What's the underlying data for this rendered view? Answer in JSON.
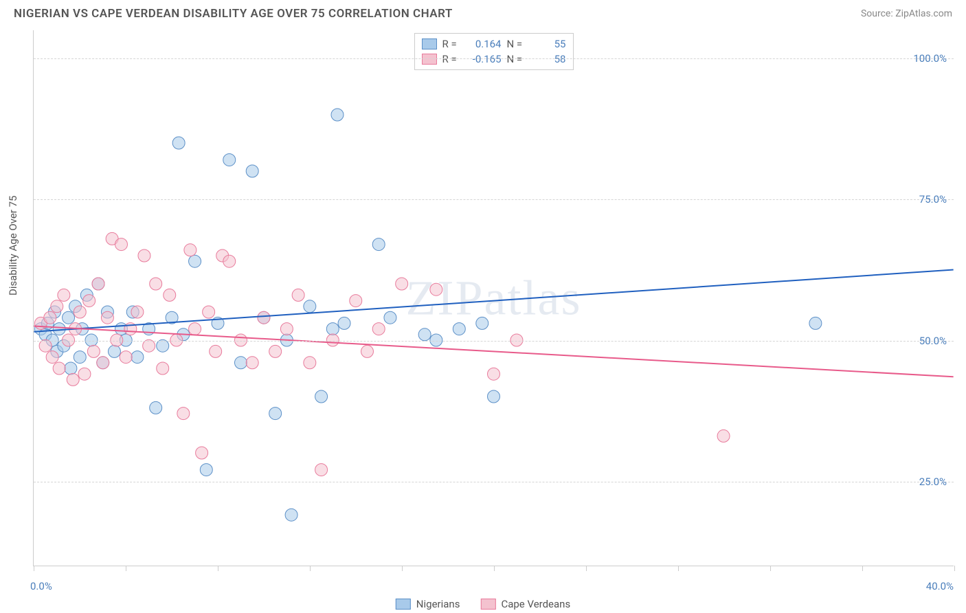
{
  "header": {
    "title": "NIGERIAN VS CAPE VERDEAN DISABILITY AGE OVER 75 CORRELATION CHART",
    "source": "Source: ZipAtlas.com"
  },
  "chart": {
    "type": "scatter",
    "ylabel": "Disability Age Over 75",
    "xlim": [
      0,
      40
    ],
    "ylim": [
      10,
      105
    ],
    "yticks": [
      25,
      50,
      75,
      100
    ],
    "ytick_labels": [
      "25.0%",
      "50.0%",
      "75.0%",
      "100.0%"
    ],
    "xticks": [
      0,
      4,
      8,
      12,
      16,
      20,
      24,
      28,
      32,
      36,
      40
    ],
    "xtick_labels_shown": {
      "0": "0.0%",
      "40": "40.0%"
    },
    "background_color": "#ffffff",
    "grid_color": "#d5d5d5",
    "axis_color": "#cccccc",
    "tick_label_color": "#4a7ebb",
    "label_color": "#555555",
    "marker_radius": 9,
    "marker_opacity": 0.55,
    "series": [
      {
        "name": "Nigerians",
        "color_fill": "#a8caea",
        "color_stroke": "#5b8fc7",
        "r_value": "0.164",
        "n_value": "55",
        "trend": {
          "x1": 0,
          "y1": 51.5,
          "x2": 40,
          "y2": 62.5,
          "color": "#1f5fbf",
          "width": 2
        },
        "points": [
          [
            0.3,
            52
          ],
          [
            0.5,
            51
          ],
          [
            0.6,
            53
          ],
          [
            0.8,
            50
          ],
          [
            0.9,
            55
          ],
          [
            1.0,
            48
          ],
          [
            1.1,
            52
          ],
          [
            1.3,
            49
          ],
          [
            1.5,
            54
          ],
          [
            1.6,
            45
          ],
          [
            1.8,
            56
          ],
          [
            2.0,
            47
          ],
          [
            2.1,
            52
          ],
          [
            2.3,
            58
          ],
          [
            2.5,
            50
          ],
          [
            2.8,
            60
          ],
          [
            3.0,
            46
          ],
          [
            3.2,
            55
          ],
          [
            3.5,
            48
          ],
          [
            3.8,
            52
          ],
          [
            4.0,
            50
          ],
          [
            4.3,
            55
          ],
          [
            4.5,
            47
          ],
          [
            5.0,
            52
          ],
          [
            5.3,
            38
          ],
          [
            5.6,
            49
          ],
          [
            6.0,
            54
          ],
          [
            6.3,
            85
          ],
          [
            6.5,
            51
          ],
          [
            7.0,
            64
          ],
          [
            7.5,
            27
          ],
          [
            8.0,
            53
          ],
          [
            8.5,
            82
          ],
          [
            9.0,
            46
          ],
          [
            9.5,
            80
          ],
          [
            10.0,
            54
          ],
          [
            10.5,
            37
          ],
          [
            11.0,
            50
          ],
          [
            11.2,
            19
          ],
          [
            12.0,
            56
          ],
          [
            12.5,
            40
          ],
          [
            13.0,
            52
          ],
          [
            13.2,
            90
          ],
          [
            13.5,
            53
          ],
          [
            15.0,
            67
          ],
          [
            15.5,
            54
          ],
          [
            17.0,
            51
          ],
          [
            17.5,
            50
          ],
          [
            18.5,
            52
          ],
          [
            19.5,
            53
          ],
          [
            20.0,
            40
          ],
          [
            34.0,
            53
          ]
        ]
      },
      {
        "name": "Cape Verdeans",
        "color_fill": "#f4c2cf",
        "color_stroke": "#e87a9b",
        "r_value": "-0.165",
        "n_value": "58",
        "trend": {
          "x1": 0,
          "y1": 52.5,
          "x2": 40,
          "y2": 43.5,
          "color": "#e85a8a",
          "width": 2
        },
        "points": [
          [
            0.3,
            53
          ],
          [
            0.5,
            49
          ],
          [
            0.7,
            54
          ],
          [
            0.8,
            47
          ],
          [
            1.0,
            56
          ],
          [
            1.1,
            45
          ],
          [
            1.3,
            58
          ],
          [
            1.5,
            50
          ],
          [
            1.7,
            43
          ],
          [
            1.8,
            52
          ],
          [
            2.0,
            55
          ],
          [
            2.2,
            44
          ],
          [
            2.4,
            57
          ],
          [
            2.6,
            48
          ],
          [
            2.8,
            60
          ],
          [
            3.0,
            46
          ],
          [
            3.2,
            54
          ],
          [
            3.4,
            68
          ],
          [
            3.6,
            50
          ],
          [
            3.8,
            67
          ],
          [
            4.0,
            47
          ],
          [
            4.2,
            52
          ],
          [
            4.5,
            55
          ],
          [
            4.8,
            65
          ],
          [
            5.0,
            49
          ],
          [
            5.3,
            60
          ],
          [
            5.6,
            45
          ],
          [
            5.9,
            58
          ],
          [
            6.2,
            50
          ],
          [
            6.5,
            37
          ],
          [
            6.8,
            66
          ],
          [
            7.0,
            52
          ],
          [
            7.3,
            30
          ],
          [
            7.6,
            55
          ],
          [
            7.9,
            48
          ],
          [
            8.2,
            65
          ],
          [
            8.5,
            64
          ],
          [
            9.0,
            50
          ],
          [
            9.5,
            46
          ],
          [
            10.0,
            54
          ],
          [
            10.5,
            48
          ],
          [
            11.0,
            52
          ],
          [
            11.5,
            58
          ],
          [
            12.0,
            46
          ],
          [
            12.5,
            27
          ],
          [
            13.0,
            50
          ],
          [
            14.0,
            57
          ],
          [
            14.5,
            48
          ],
          [
            15.0,
            52
          ],
          [
            16.0,
            60
          ],
          [
            17.5,
            59
          ],
          [
            20.0,
            44
          ],
          [
            21.0,
            50
          ],
          [
            30.0,
            33
          ]
        ]
      }
    ],
    "watermark": "ZIPatlas",
    "legend_top": {
      "r_label": "R =",
      "n_label": "N ="
    }
  }
}
